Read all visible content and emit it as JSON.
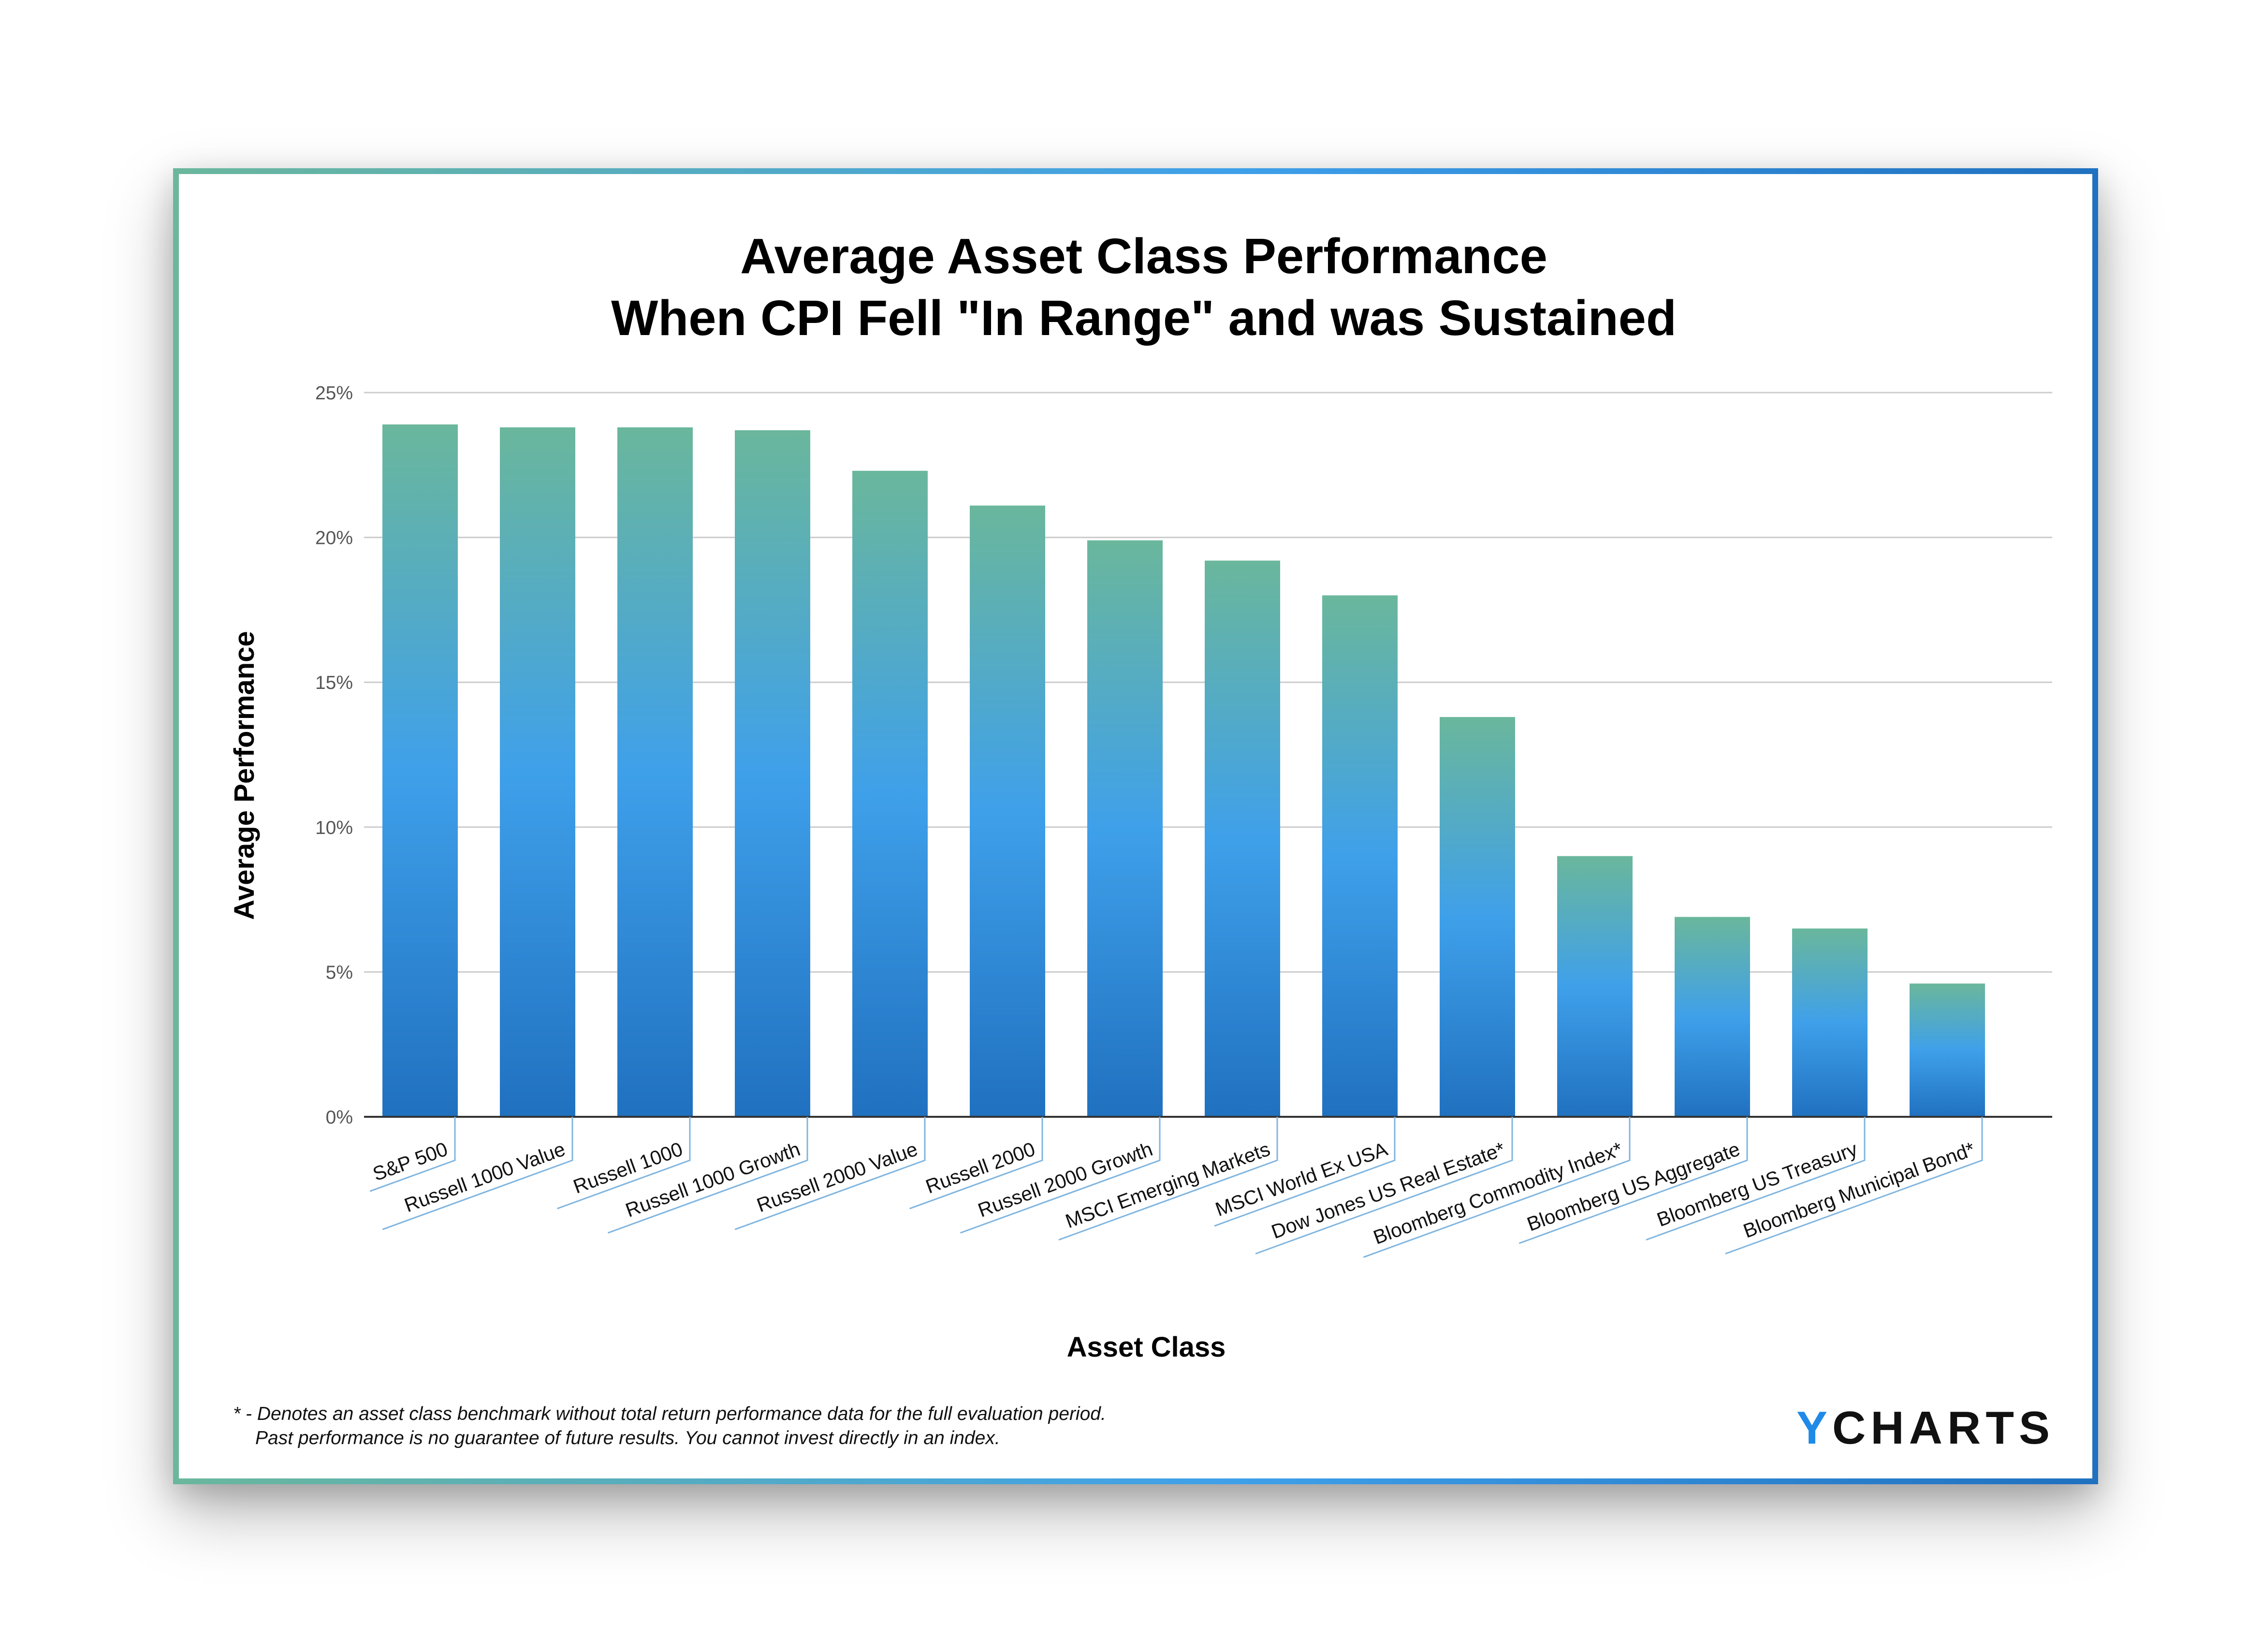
{
  "chart_data": {
    "type": "bar",
    "title": "Average Asset Class Performance",
    "subtitle": "When CPI Fell \"In Range\" and was Sustained",
    "xlabel": "Asset Class",
    "ylabel": "Average Performance",
    "ylim": [
      0,
      25
    ],
    "yticks": [
      "0%",
      "5%",
      "10%",
      "15%",
      "20%",
      "25%"
    ],
    "ytick_values": [
      0,
      5,
      10,
      15,
      20,
      25
    ],
    "grid": true,
    "categories": [
      "S&P 500",
      "Russell 1000 Value",
      "Russell 1000",
      "Russell 1000 Growth",
      "Russell 2000 Value",
      "Russell 2000",
      "Russell 2000 Growth",
      "MSCI Emerging Markets",
      "MSCI World Ex USA",
      "Dow Jones US Real Estate*",
      "Bloomberg Commodity Index*",
      "Bloomberg US Aggregate",
      "Bloomberg US Treasury",
      "Bloomberg Municipal Bond*"
    ],
    "values": [
      23.9,
      23.8,
      23.8,
      23.7,
      22.3,
      21.1,
      19.9,
      19.2,
      18.0,
      13.8,
      9.0,
      6.9,
      6.5,
      4.6
    ],
    "colors": {
      "bar_top": "#6ab79c",
      "bar_mid": "#3fa0ea",
      "bar_bottom": "#2071c0",
      "frame_left": "#6ab79c",
      "frame_right": "#2071c0",
      "grid": "#cccccc",
      "baseline": "#333333",
      "leader": "#7fb5e0"
    }
  },
  "footnote": {
    "line1": "* - Denotes an asset class benchmark without total return performance data for the full evaluation period.",
    "line2": "Past performance is no guarantee of future results. You cannot invest directly in an index."
  },
  "logo": {
    "y": "Y",
    "rest": "CHARTS"
  }
}
